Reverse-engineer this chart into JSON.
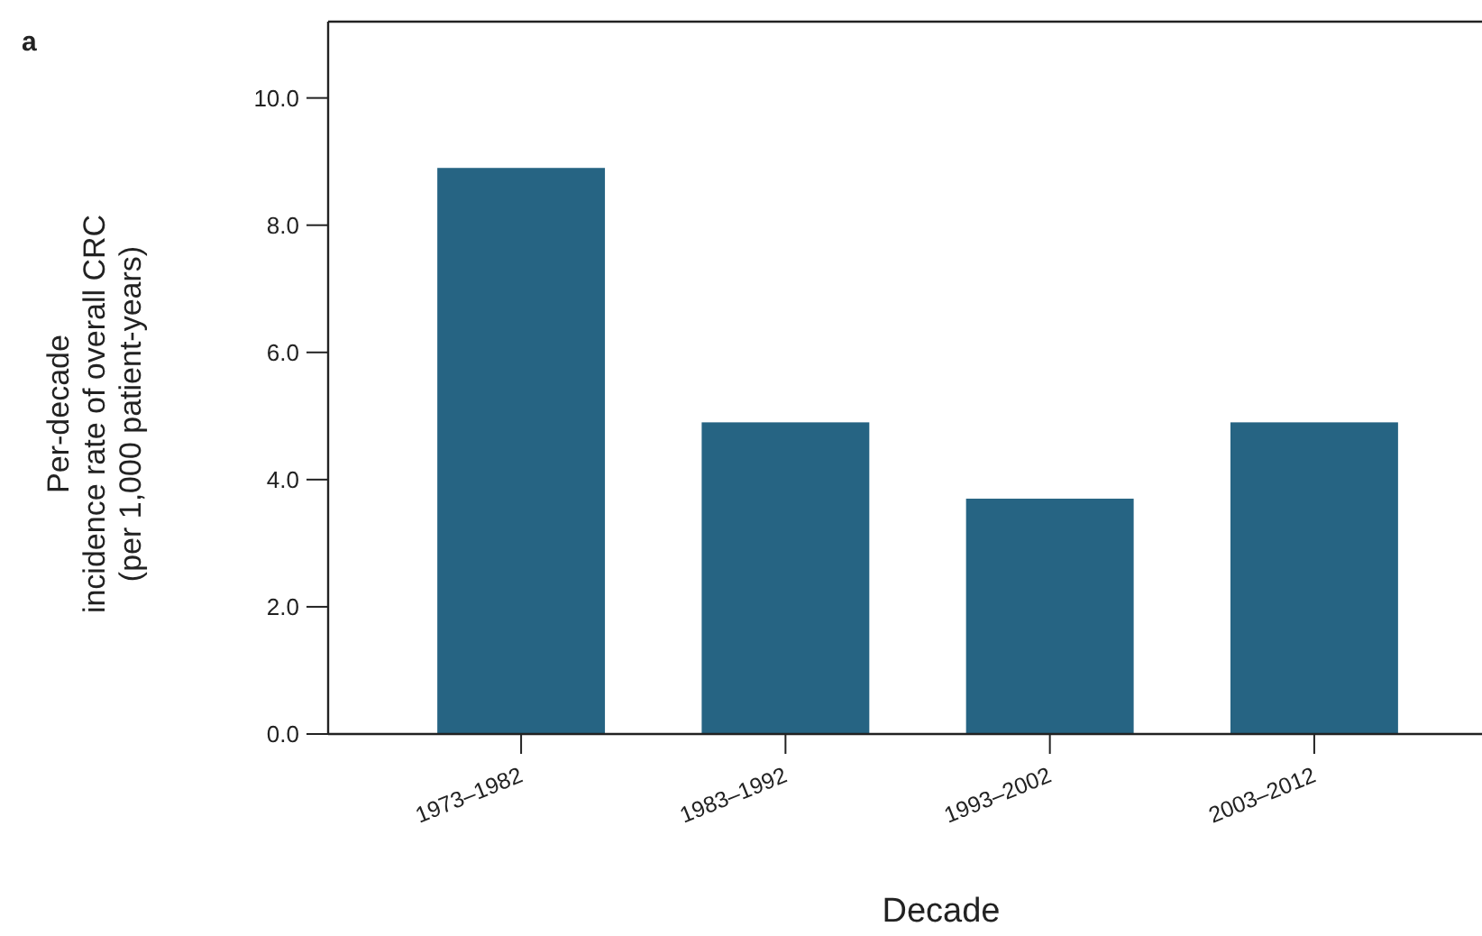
{
  "chart_data": {
    "type": "bar",
    "xlabel": "Decade",
    "ylabel": "Per-decade\nincidence rate of overall CRC\n(per 1,000 patient-years)",
    "annotations": [
      "a"
    ],
    "categories": [
      "1973–1982",
      "1983–1992",
      "1993–2002",
      "2003–2012"
    ],
    "values": [
      8.9,
      4.9,
      3.7,
      4.9
    ],
    "color": "#266483",
    "ylim": [
      0,
      11.2
    ],
    "yticks": [
      {
        "value": 0,
        "label": "0.0"
      },
      {
        "value": 2,
        "label": "2.0"
      },
      {
        "value": 4,
        "label": "4.0"
      },
      {
        "value": 6,
        "label": "6.0"
      },
      {
        "value": 8,
        "label": "8.0"
      },
      {
        "value": 10,
        "label": "10.0"
      }
    ],
    "grid": false
  }
}
